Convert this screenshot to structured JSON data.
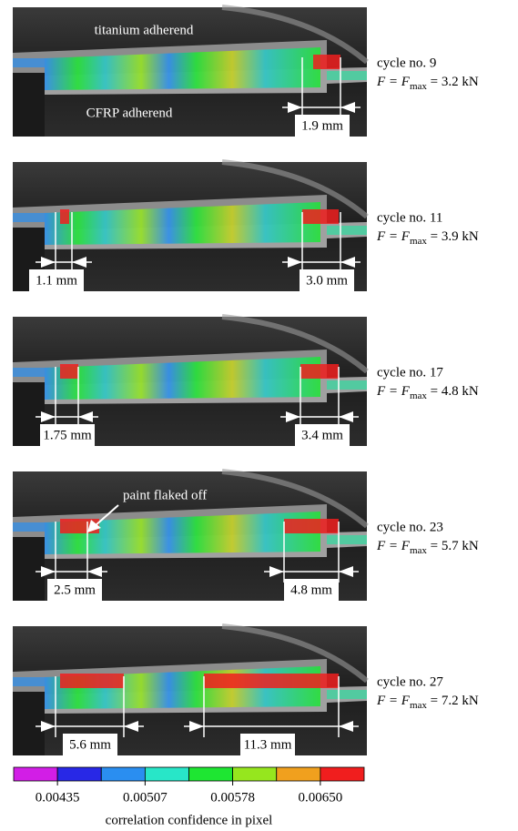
{
  "annotations": {
    "titanium": "titanium adherend",
    "cfrp": "CFRP adherend",
    "paint": "paint flaked off"
  },
  "panels": [
    {
      "cycle": "cycle no. 9",
      "force": {
        "lhs": "F = F",
        "sub": "max",
        "rhs": " = 3.2 kN"
      },
      "measurements": [
        "1.9 mm"
      ]
    },
    {
      "cycle": "cycle no. 11",
      "force": {
        "lhs": "F = F",
        "sub": "max",
        "rhs": " = 3.9 kN"
      },
      "measurements": [
        "1.1 mm",
        "3.0 mm"
      ]
    },
    {
      "cycle": "cycle no. 17",
      "force": {
        "lhs": "F = F",
        "sub": "max",
        "rhs": " = 4.8 kN"
      },
      "measurements": [
        "1.75 mm",
        "3.4 mm"
      ]
    },
    {
      "cycle": "cycle no. 23",
      "force": {
        "lhs": "F = F",
        "sub": "max",
        "rhs": " = 5.7 kN"
      },
      "measurements": [
        "2.5 mm",
        "4.8 mm"
      ]
    },
    {
      "cycle": "cycle no. 27",
      "force": {
        "lhs": "F = F",
        "sub": "max",
        "rhs": " = 7.2 kN"
      },
      "measurements": [
        "5.6 mm",
        "11.3 mm"
      ]
    }
  ],
  "colorbar": {
    "colors": [
      "#d21ee6",
      "#2828e6",
      "#2a8ef0",
      "#28e6c8",
      "#1ee632",
      "#96e61e",
      "#f0a01e",
      "#f01e1e"
    ],
    "ticks": [
      0.00435,
      0.00507,
      0.00578,
      {
        "value": 0.0065,
        "label": "0.00650"
      }
    ],
    "label": "correlation confidence in pixel"
  }
}
